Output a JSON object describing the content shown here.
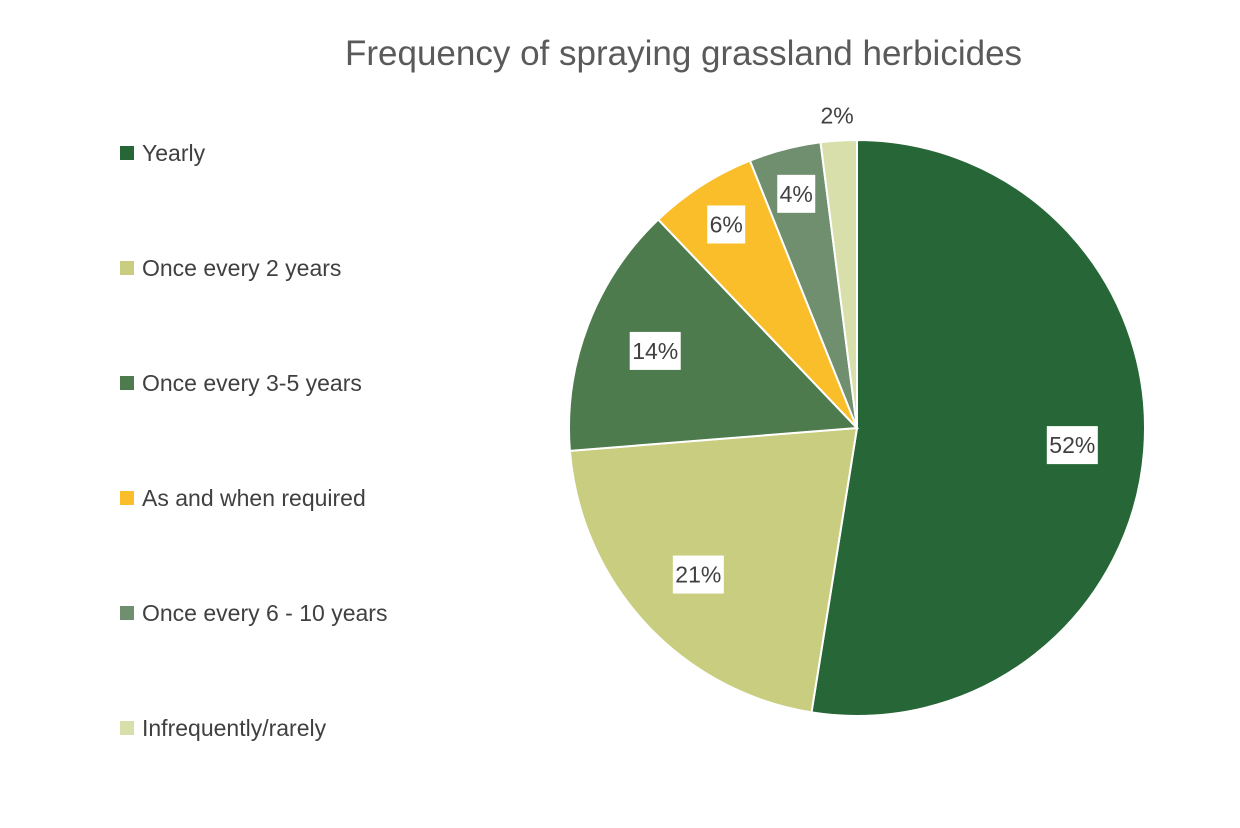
{
  "chart_data": {
    "type": "pie",
    "title": "Frequency of spraying grassland herbicides",
    "legend_position": "left",
    "categories": [
      "Yearly",
      "Once every 2 years",
      "Once every 3-5 years",
      "As and when required",
      "Once every 6 - 10 years",
      "Infrequently/rarely"
    ],
    "values": [
      52,
      21,
      14,
      6,
      4,
      2
    ],
    "labels": [
      "52%",
      "21%",
      "14%",
      "6%",
      "4%",
      "2%"
    ],
    "colors": [
      "#276737",
      "#c9cd80",
      "#4e7b4d",
      "#fbbe2b",
      "#6f8f6e",
      "#d9dfab"
    ]
  }
}
